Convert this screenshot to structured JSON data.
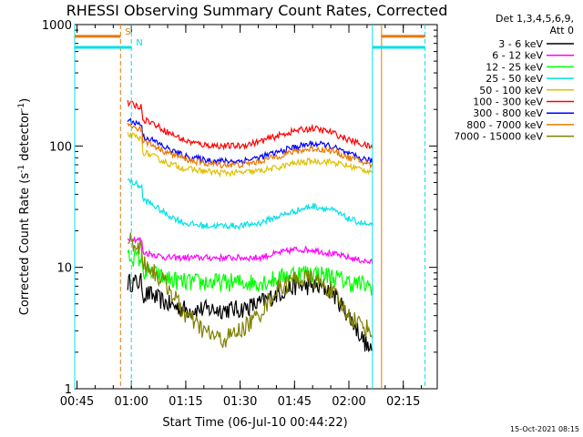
{
  "chart_data": {
    "type": "line",
    "title": "RHESSI Observing Summary Count Rates, Corrected",
    "xlabel": "Start Time (06-Jul-10 00:44:22)",
    "ylabel": "Corrected Count Rate (s-1 detector-1)",
    "ylabel_parts": {
      "a": "Corrected Count Rate (s",
      "b": "-1",
      "c": " detector",
      "d": "-1",
      "e": ")"
    },
    "yscale": "log",
    "ylim": [
      1,
      1000
    ],
    "xlim": [
      "00:44:22",
      "02:24:22"
    ],
    "x_ticks": [
      "00:45",
      "01:00",
      "01:15",
      "01:30",
      "01:45",
      "02:00",
      "02:15"
    ],
    "y_ticks": [
      "1",
      "10",
      "100",
      "1000"
    ],
    "legend_header": [
      "Det 1,3,4,5,6,9,",
      "Att 0"
    ],
    "legend_placement": "right",
    "footer_timestamp": "15-Oct-2021 08:15",
    "data_window": {
      "start": "00:59:00",
      "end": "02:06:30"
    },
    "markers": [
      {
        "label": "S",
        "start": "00:44:22",
        "end": "00:57:00",
        "color": "#e87800",
        "level": 800
      },
      {
        "label": "N",
        "start": "00:44:22",
        "end": "01:00:00",
        "color": "#00e0e8",
        "level": 650
      },
      {
        "label": "",
        "start": "02:06:30",
        "end": "02:21:00",
        "color": "#00e0e8",
        "level": 650
      },
      {
        "label": "",
        "start": "02:09:00",
        "end": "02:21:00",
        "color": "#e87800",
        "level": 800
      }
    ],
    "vertical_lines": [
      {
        "time": "00:44:22",
        "color": "#00e0e8",
        "style": "solid"
      },
      {
        "time": "00:57:00",
        "color": "#e87800",
        "style": "dashed"
      },
      {
        "time": "01:00:00",
        "color": "#00e0e8",
        "style": "dashed"
      },
      {
        "time": "02:06:30",
        "color": "#00e0e8",
        "style": "solid"
      },
      {
        "time": "02:09:00",
        "color": "#e87800",
        "style": "solid"
      },
      {
        "time": "02:21:00",
        "color": "#00e0e8",
        "style": "dashed"
      }
    ],
    "x": [
      "00:59",
      "01:05",
      "01:10",
      "01:15",
      "01:20",
      "01:25",
      "01:30",
      "01:35",
      "01:40",
      "01:45",
      "01:50",
      "01:55",
      "02:00",
      "02:06"
    ],
    "series": [
      {
        "name": "3 - 6 keV",
        "color": "#000000",
        "values": [
          6,
          6,
          5,
          4.5,
          4.5,
          4.5,
          4.5,
          5,
          6,
          7,
          7,
          6.5,
          4,
          2
        ]
      },
      {
        "name": "6 - 12 keV",
        "color": "#ff00ff",
        "values": [
          14,
          13,
          12,
          12,
          12,
          12,
          12,
          12,
          13,
          14,
          14,
          13,
          12,
          11
        ]
      },
      {
        "name": "12 - 25 keV",
        "color": "#00ff00",
        "values": [
          10,
          9,
          8,
          7.5,
          7.5,
          7.5,
          7.5,
          7.5,
          8,
          9,
          9,
          8.5,
          7.5,
          7
        ]
      },
      {
        "name": "25 - 50 keV",
        "color": "#00e0e8",
        "values": [
          42,
          34,
          27,
          23,
          22,
          22,
          22,
          23,
          26,
          29,
          32,
          30,
          25,
          22
        ]
      },
      {
        "name": "50 - 100 keV",
        "color": "#e0c000",
        "values": [
          100,
          85,
          72,
          65,
          62,
          60,
          60,
          62,
          66,
          72,
          75,
          74,
          68,
          62
        ]
      },
      {
        "name": "100 - 300 keV",
        "color": "#ff0000",
        "values": [
          180,
          160,
          130,
          110,
          102,
          100,
          100,
          108,
          120,
          133,
          140,
          130,
          112,
          98
        ]
      },
      {
        "name": "300 - 800 keV",
        "color": "#0000ff",
        "values": [
          130,
          115,
          95,
          82,
          77,
          75,
          75,
          80,
          88,
          98,
          105,
          100,
          85,
          75
        ]
      },
      {
        "name": "800 - 7000 keV",
        "color": "#e87800",
        "values": [
          120,
          105,
          88,
          78,
          72,
          70,
          70,
          74,
          82,
          90,
          95,
          92,
          80,
          70
        ]
      },
      {
        "name": "7000 - 15000 keV",
        "color": "#808000",
        "values": [
          14,
          10,
          7,
          4,
          3,
          2.5,
          3,
          4,
          6.5,
          8,
          8,
          6.5,
          4,
          3
        ]
      }
    ]
  }
}
